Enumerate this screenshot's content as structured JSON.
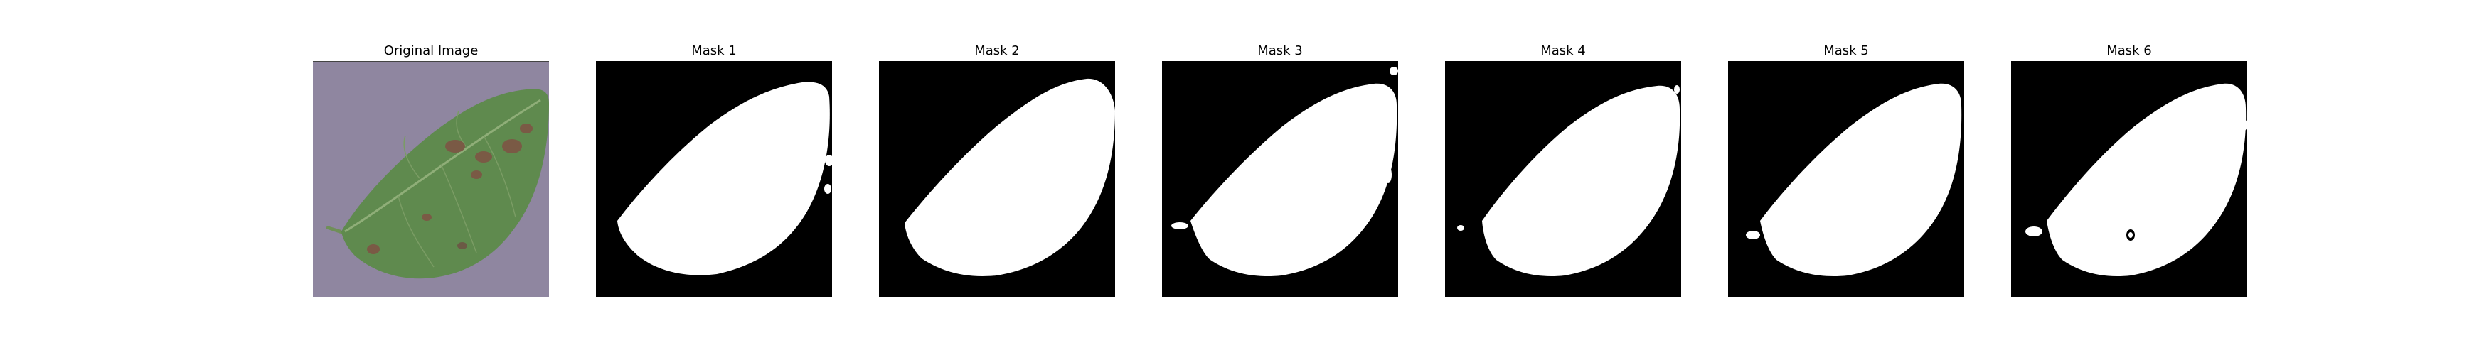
{
  "panels": [
    {
      "title": "Original Image",
      "kind": "photo"
    },
    {
      "title": "Mask 1",
      "kind": "mask"
    },
    {
      "title": "Mask 2",
      "kind": "mask"
    },
    {
      "title": "Mask 3",
      "kind": "mask"
    },
    {
      "title": "Mask 4",
      "kind": "mask"
    },
    {
      "title": "Mask 5",
      "kind": "mask"
    },
    {
      "title": "Mask 6",
      "kind": "mask"
    }
  ],
  "colors": {
    "photo_background": "#8f86a0",
    "leaf_green": "#5f8a4e",
    "leaf_dark": "#4a6e3c",
    "leaf_spot": "#7a5a45",
    "mask_background": "#000000",
    "mask_foreground": "#ffffff"
  }
}
